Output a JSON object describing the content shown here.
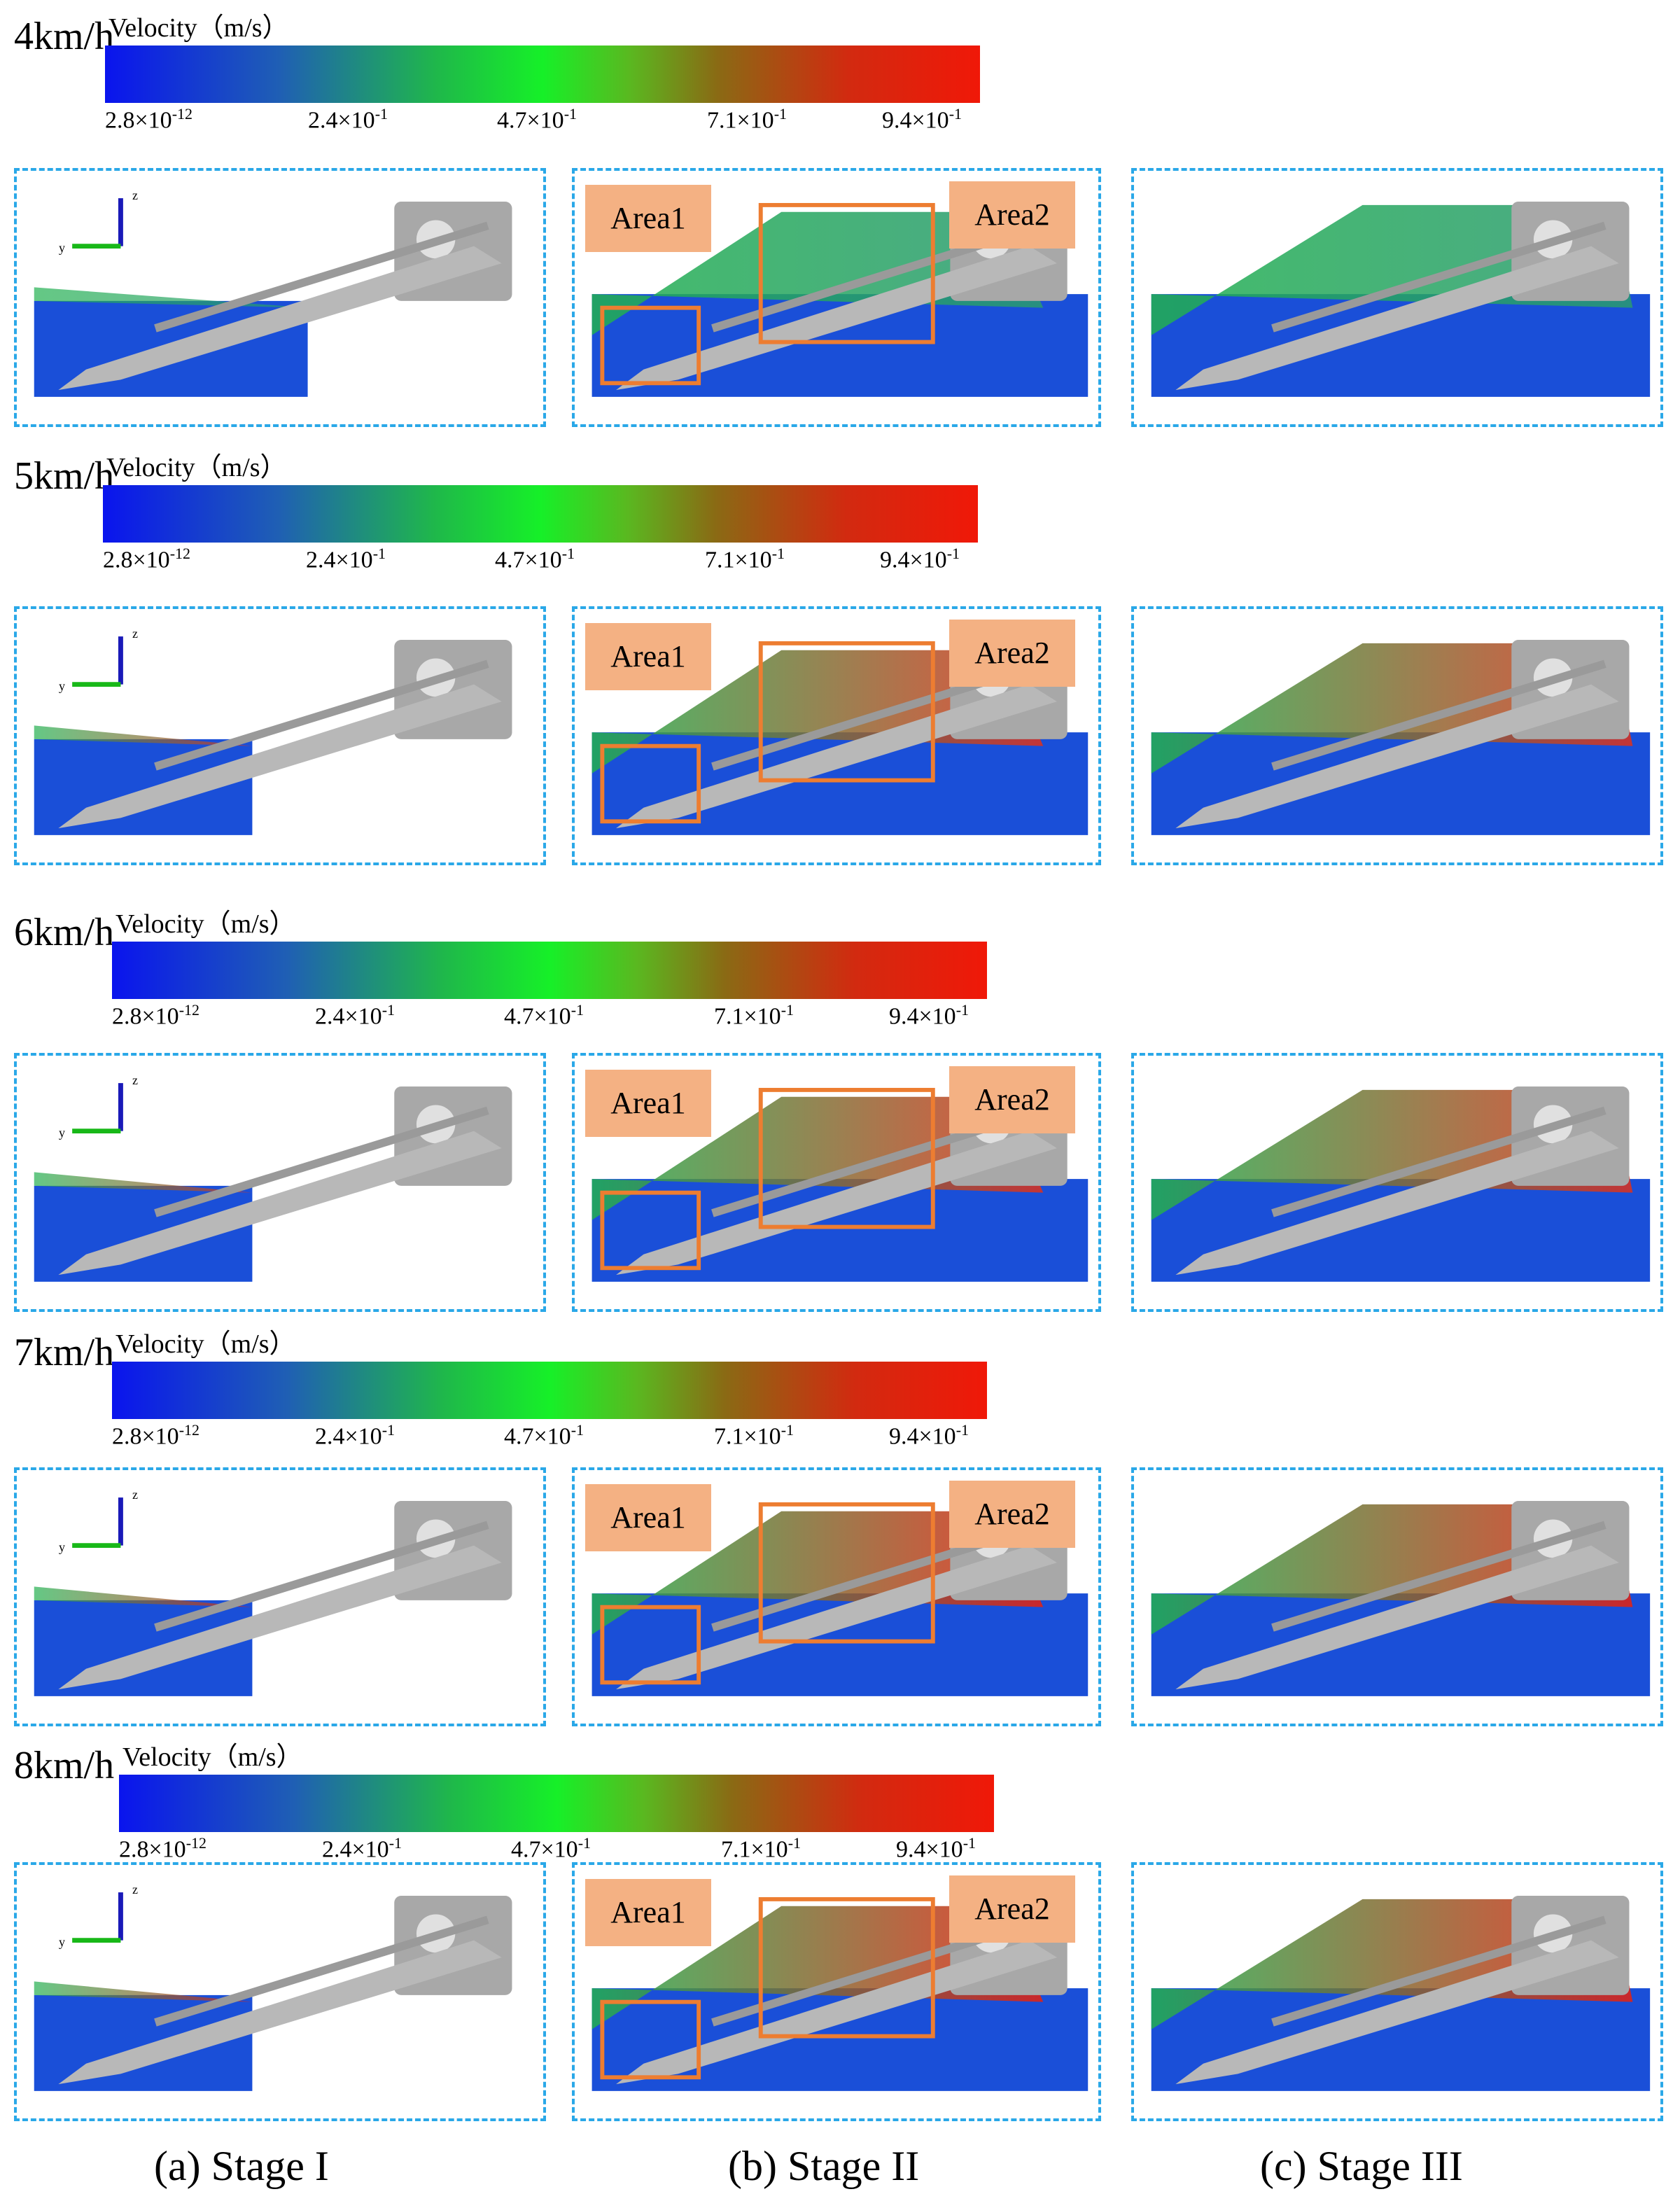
{
  "colorbar": {
    "title": "Velocity（m/s）",
    "ticks": [
      "2.8×10",
      "2.4×10",
      "4.7×10",
      "7.1×10",
      "9.4×10"
    ],
    "exps": [
      "-12",
      "-1",
      "-1",
      "-1",
      "-1"
    ],
    "colors": [
      "#0a14ee",
      "#16f028",
      "#f01808"
    ]
  },
  "rows": [
    {
      "speed": "4km/h",
      "particle_color": "#1a4fd8",
      "accent": "#2a9a70"
    },
    {
      "speed": "5km/h",
      "particle_color": "#1a4fd8",
      "accent": "#e0301a"
    },
    {
      "speed": "6km/h",
      "particle_color": "#1a4fd8",
      "accent": "#e0301a"
    },
    {
      "speed": "7km/h",
      "particle_color": "#1a4fd8",
      "accent": "#e8200e"
    },
    {
      "speed": "8km/h",
      "particle_color": "#1a4fd8",
      "accent": "#e8200e"
    }
  ],
  "area_labels": {
    "area1": "Area1",
    "area2": "Area2"
  },
  "axis_labels": {
    "z": "z",
    "y": "y"
  },
  "captions": {
    "a": "(a) Stage I",
    "b": "(b) Stage II",
    "c": "(c) Stage III"
  },
  "colors": {
    "panel_border": "#2aa8e8",
    "area_box": "#ed7d31",
    "area_label_bg": "#f4b183",
    "tool": "#b8b8b8"
  }
}
